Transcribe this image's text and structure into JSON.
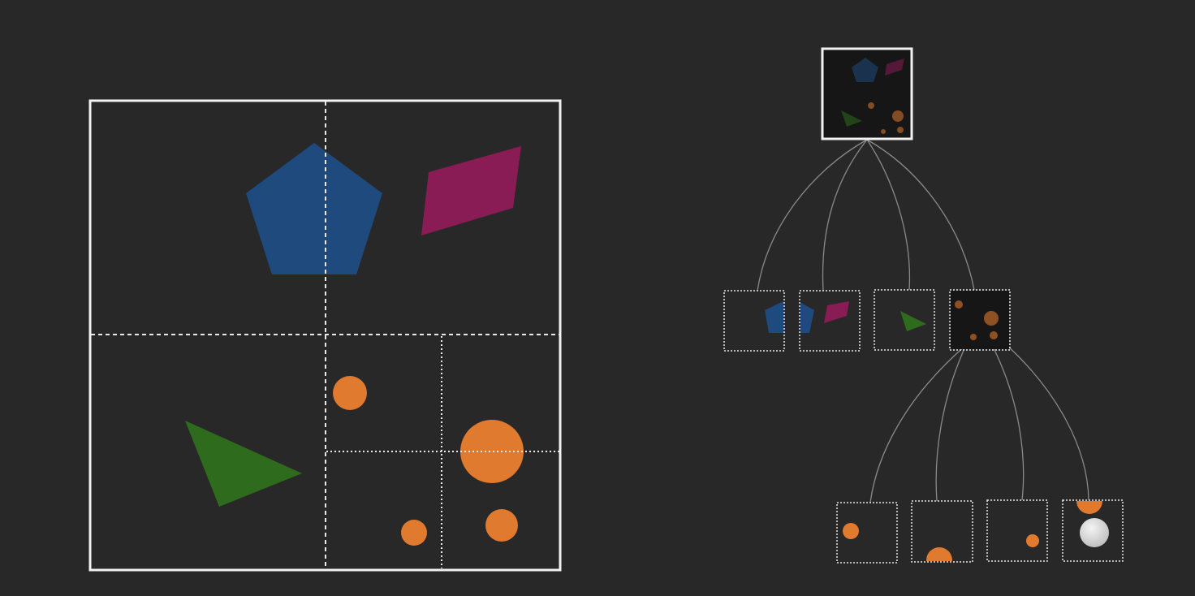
{
  "colors": {
    "background": "#282828",
    "frame": "#f2f2f2",
    "divider": "#e8e8e8",
    "node_fill": "#161616",
    "edge": "#8a8a8a",
    "pentagon": "#1f4a7e",
    "rhombus": "#8a1c55",
    "triangle": "#2e6b1c",
    "circle": "#e07a2e",
    "ghost_ball": "#d9d9d9"
  },
  "quadtree": {
    "root": {
      "shapes": [
        "pentagon",
        "rhombus",
        "triangle",
        "circle",
        "circle",
        "circle",
        "circle"
      ],
      "children": [
        {
          "id": "nw",
          "shapes": [
            "pentagon"
          ]
        },
        {
          "id": "ne",
          "shapes": [
            "pentagon",
            "rhombus"
          ]
        },
        {
          "id": "sw",
          "shapes": [
            "triangle"
          ]
        },
        {
          "id": "se",
          "shapes": [
            "circle",
            "circle",
            "circle",
            "circle"
          ],
          "children": [
            {
              "id": "se-nw",
              "shapes": [
                "circle"
              ]
            },
            {
              "id": "se-ne",
              "shapes": [
                "circle"
              ]
            },
            {
              "id": "se-sw",
              "shapes": [
                "circle"
              ]
            },
            {
              "id": "se-se",
              "shapes": [
                "circle",
                "ghost-ball"
              ]
            }
          ]
        }
      ]
    }
  }
}
